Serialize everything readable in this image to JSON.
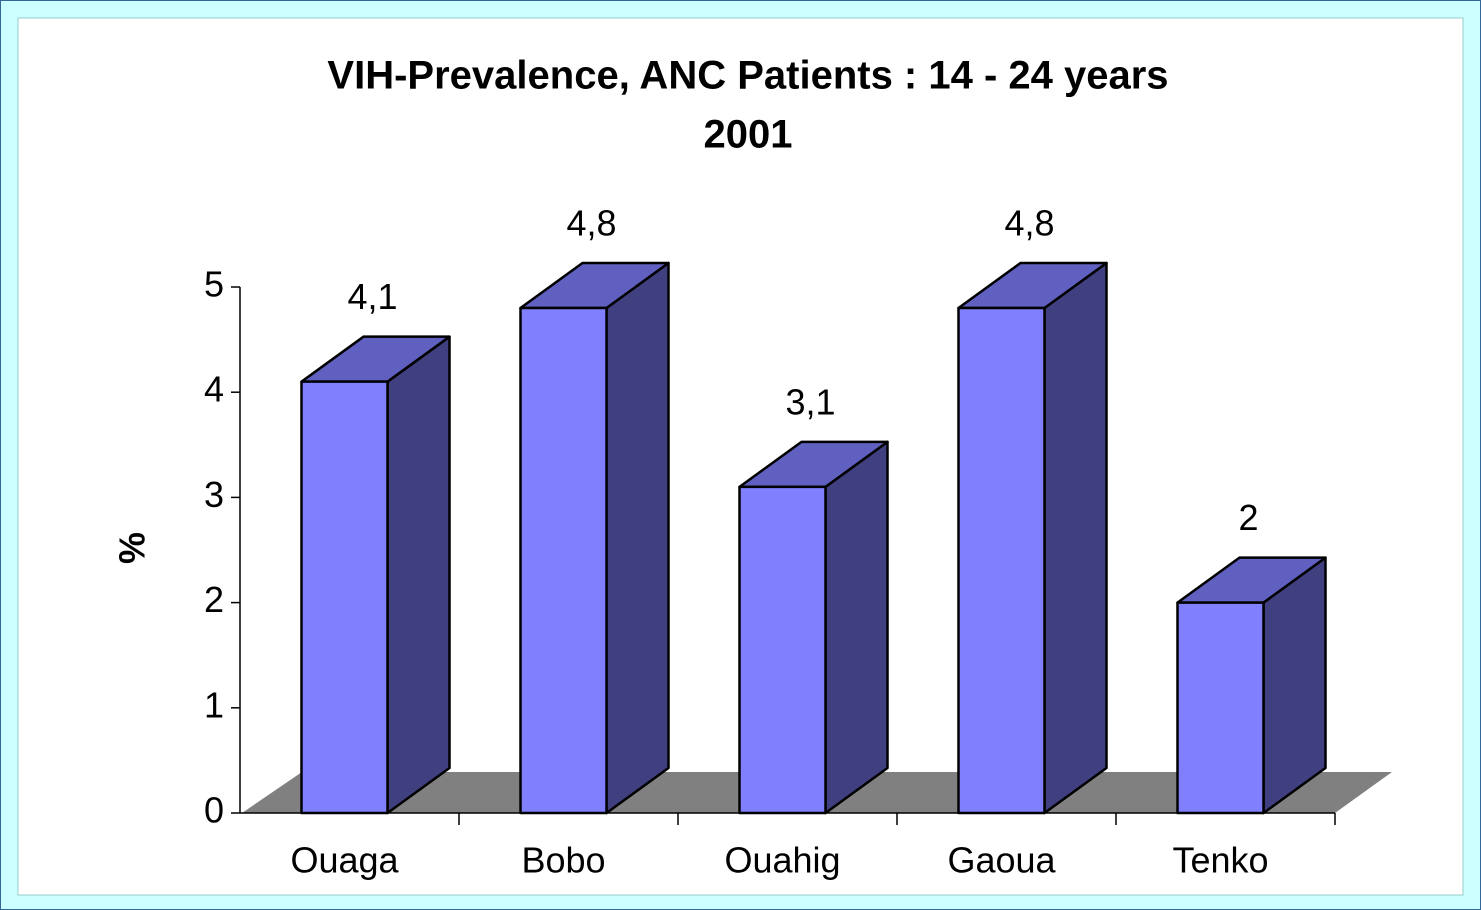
{
  "chart_data": {
    "type": "bar3d",
    "title": "VIH-Prevalence, ANC Patients : 14 - 24 years",
    "subtitle": "2001",
    "y_label": "%",
    "categories": [
      "Ouaga",
      "Bobo",
      "Ouahig",
      "Gaoua",
      "Tenko"
    ],
    "values": [
      4.1,
      4.8,
      3.1,
      4.8,
      2
    ],
    "value_labels": [
      "4,1",
      "4,8",
      "3,1",
      "4,8",
      "2"
    ],
    "color": "#8080ff",
    "ylim": [
      0,
      5
    ],
    "yticks": [
      0,
      1,
      2,
      3,
      4,
      5
    ]
  }
}
